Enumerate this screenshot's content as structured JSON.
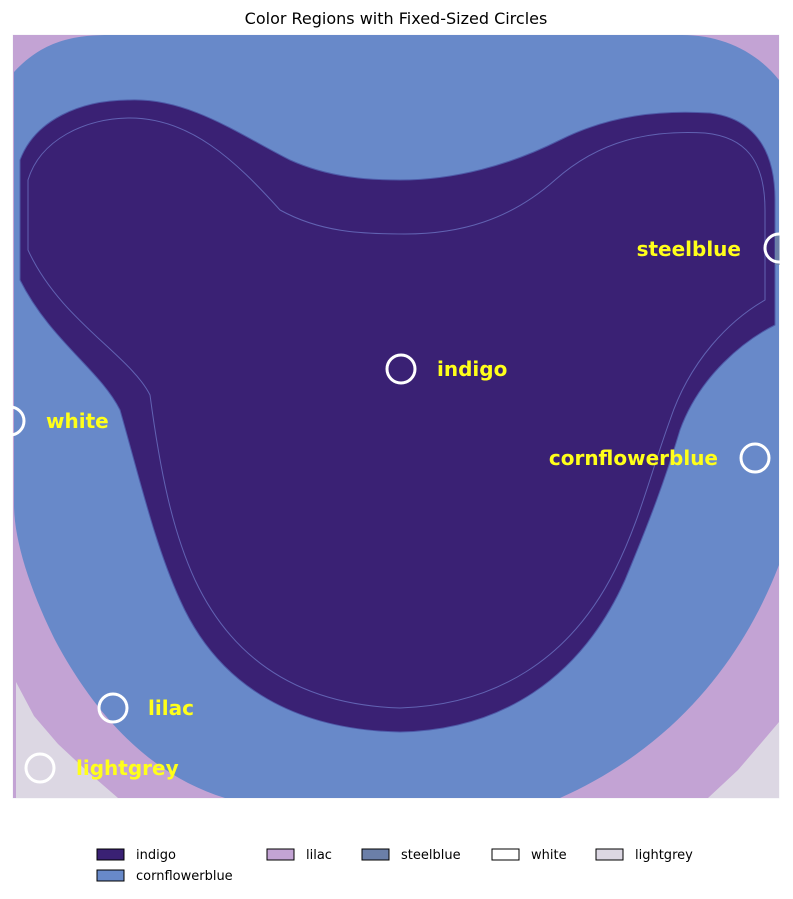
{
  "chart_data": {
    "type": "heatmap",
    "title": "Color Regions with Fixed-Sized Circles",
    "regions": [
      {
        "name": "indigo",
        "color": "#3a2174"
      },
      {
        "name": "cornflowerblue",
        "color": "#6889c9"
      },
      {
        "name": "lilac",
        "color": "#c3a3d4"
      },
      {
        "name": "steelblue",
        "color": "#6b7fa8"
      },
      {
        "name": "white",
        "color": "#ffffff"
      },
      {
        "name": "lightgrey",
        "color": "#dcd7e3"
      }
    ],
    "markers": [
      {
        "label": "indigo",
        "region": "indigo"
      },
      {
        "label": "steelblue",
        "region": "steelblue"
      },
      {
        "label": "white",
        "region": "white"
      },
      {
        "label": "cornflowerblue",
        "region": "cornflowerblue"
      },
      {
        "label": "lilac",
        "region": "lilac"
      },
      {
        "label": "lightgrey",
        "region": "lightgrey"
      }
    ],
    "legend": {
      "placement": "bottom",
      "entries": [
        "indigo",
        "cornflowerblue",
        "lilac",
        "steelblue",
        "white",
        "lightgrey"
      ]
    },
    "circle_color": "#ffffff",
    "label_color": "#ffff1a"
  }
}
